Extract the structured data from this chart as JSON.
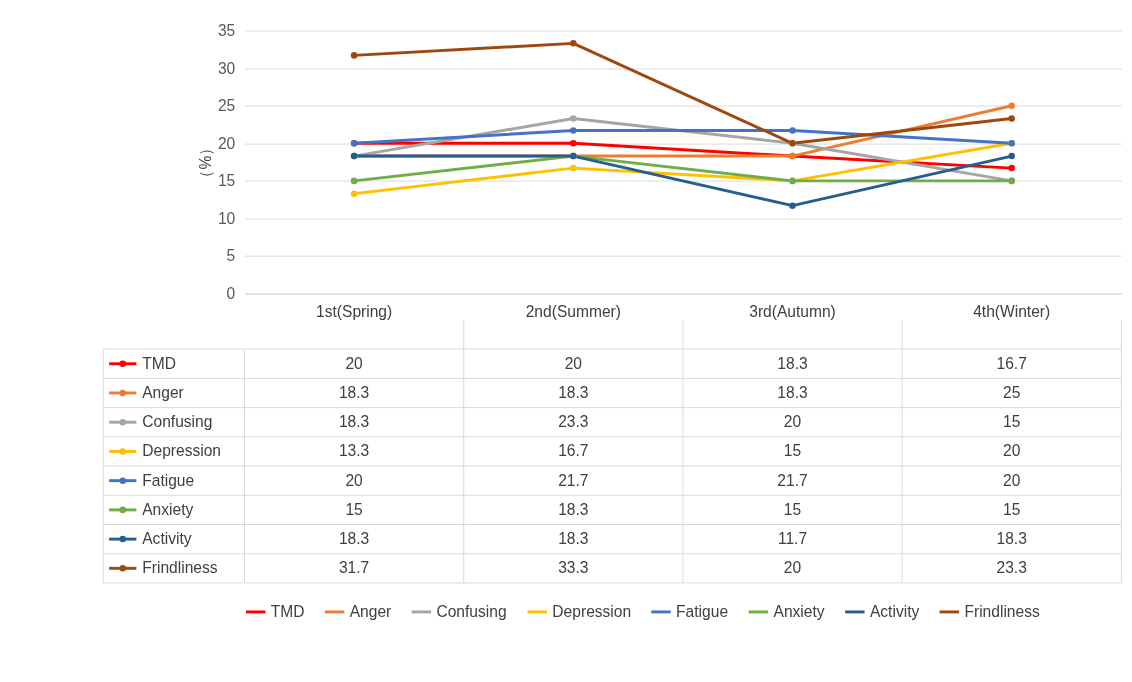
{
  "chart_data": {
    "type": "line",
    "ylabel": "（%）",
    "categories": [
      "1st(Spring)",
      "2nd(Summer)",
      "3rd(Autumn)",
      "4th(Winter)"
    ],
    "series": [
      {
        "name": "TMD",
        "color": "#ff0000",
        "values": [
          20,
          20,
          18.3,
          16.7
        ]
      },
      {
        "name": "Anger",
        "color": "#ed7d31",
        "values": [
          18.3,
          18.3,
          18.3,
          25
        ]
      },
      {
        "name": "Confusing",
        "color": "#a5a5a5",
        "values": [
          18.3,
          23.3,
          20,
          15
        ]
      },
      {
        "name": "Depression",
        "color": "#ffc000",
        "values": [
          13.3,
          16.7,
          15,
          20
        ]
      },
      {
        "name": "Fatigue",
        "color": "#4472c4",
        "values": [
          20,
          21.7,
          21.7,
          20
        ]
      },
      {
        "name": "Anxiety",
        "color": "#70ad47",
        "values": [
          15,
          18.3,
          15,
          15
        ]
      },
      {
        "name": "Activity",
        "color": "#255e91",
        "values": [
          18.3,
          18.3,
          11.7,
          18.3
        ]
      },
      {
        "name": "Frindliness",
        "color": "#9e480e",
        "values": [
          31.7,
          33.3,
          20,
          23.3
        ]
      }
    ],
    "ylim": [
      0,
      35
    ],
    "yticks": [
      0,
      5,
      10,
      15,
      20,
      25,
      30,
      35
    ],
    "grid": "y",
    "legend": "bottom",
    "marker": "circle",
    "line_style": "solid",
    "data_labels": true
  }
}
